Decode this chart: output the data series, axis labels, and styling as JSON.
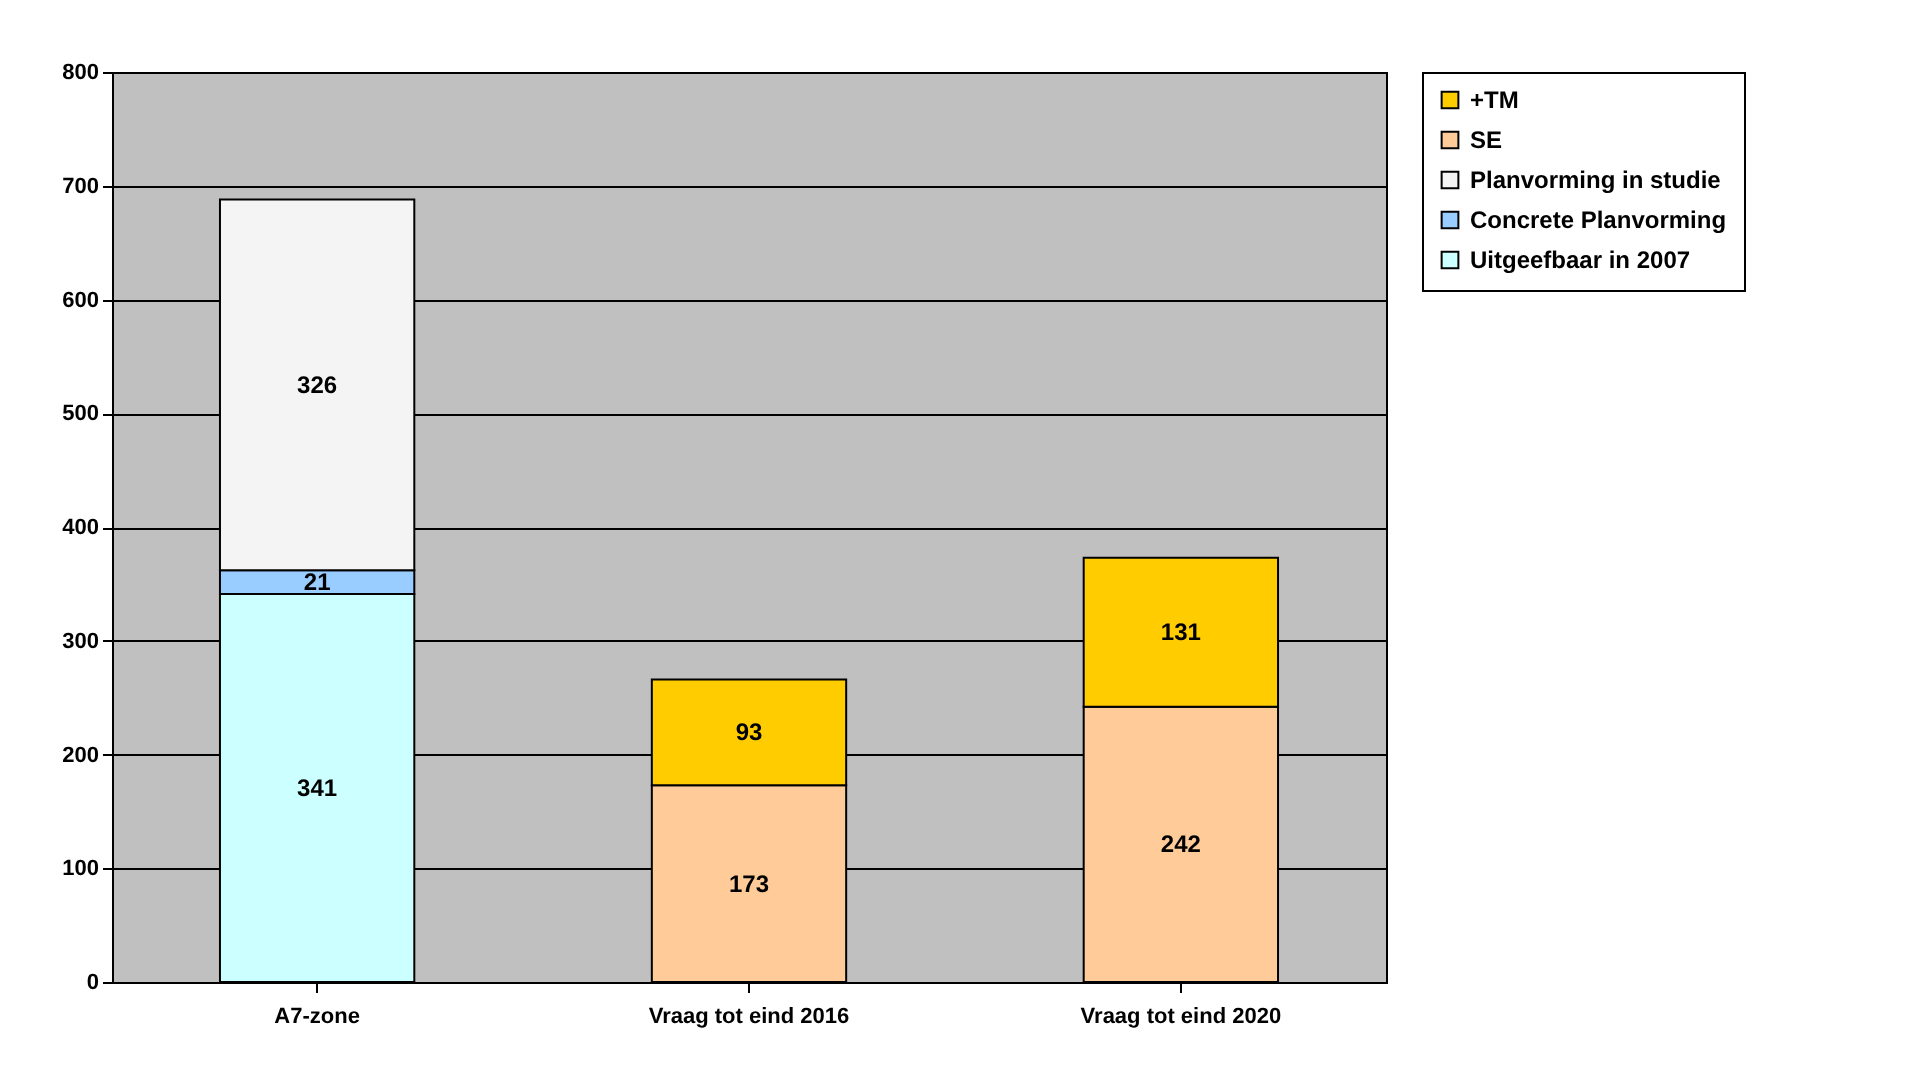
{
  "chart_data": {
    "type": "bar",
    "stacked": true,
    "categories": [
      "A7-zone",
      "Vraag tot eind 2016",
      "Vraag tot eind 2020"
    ],
    "series": [
      {
        "name": "Uitgeefbaar in 2007",
        "color": "#ccffff",
        "values": [
          341,
          null,
          null
        ]
      },
      {
        "name": "Concrete Planvorming",
        "color": "#99ccff",
        "values": [
          21,
          null,
          null
        ]
      },
      {
        "name": "Planvorming in studie",
        "color": "#f4f4f4",
        "values": [
          326,
          null,
          null
        ]
      },
      {
        "name": "SE",
        "color": "#ffcc99",
        "values": [
          null,
          173,
          242
        ]
      },
      {
        "name": "+TM",
        "color": "#ffcc00",
        "values": [
          null,
          93,
          131
        ]
      }
    ],
    "ylim": [
      0,
      800
    ],
    "yticks": [
      0,
      100,
      200,
      300,
      400,
      500,
      600,
      700,
      800
    ],
    "grid": "y",
    "legend": "right",
    "data_labels": true
  }
}
